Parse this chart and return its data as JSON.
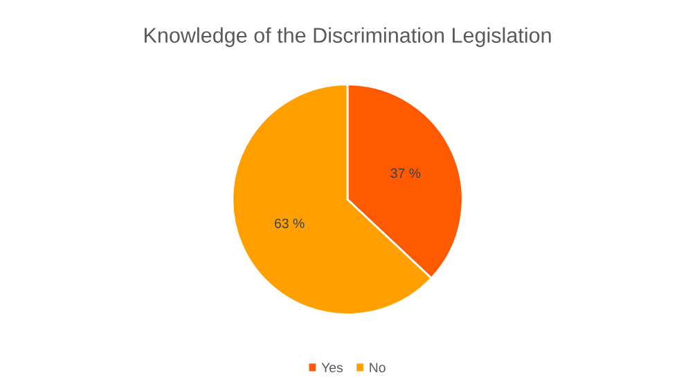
{
  "chart_data": {
    "type": "pie",
    "title": "Knowledge of the Discrimination Legislation",
    "categories": [
      "Yes",
      "No"
    ],
    "values": [
      37,
      63
    ],
    "value_labels": [
      "37 %",
      "63 %"
    ],
    "colors": [
      "#ff5a00",
      "#ffa000"
    ],
    "legend": "bottom"
  }
}
